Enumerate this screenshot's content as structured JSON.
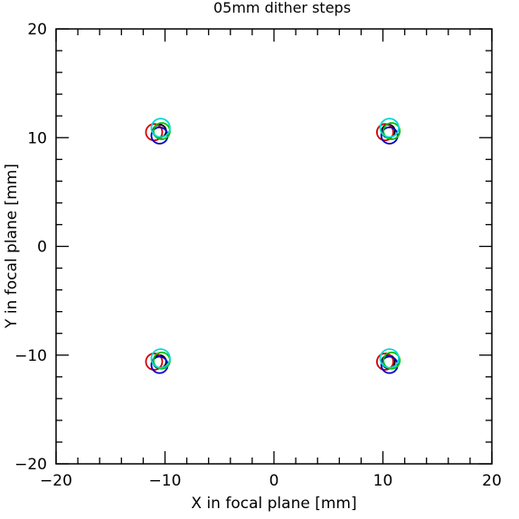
{
  "chart_data": {
    "type": "scatter",
    "title": "05mm dither steps",
    "xlabel": "X in focal plane [mm]",
    "ylabel": "Y in focal plane [mm]",
    "xlim": [
      -20,
      20
    ],
    "ylim": [
      -20,
      20
    ],
    "x_ticks": [
      "−20",
      "−10",
      "0",
      "10",
      "20"
    ],
    "y_ticks": [
      "−20",
      "−10",
      "0",
      "10",
      "20"
    ],
    "grid": false,
    "series": [
      {
        "color": "#000000",
        "circle_radius": 0.6,
        "points": [
          {
            "x": -10.5,
            "y": 10.6
          },
          {
            "x": 10.5,
            "y": 10.6
          },
          {
            "x": -10.5,
            "y": -10.6
          },
          {
            "x": 10.5,
            "y": -10.6
          }
        ]
      },
      {
        "color": "#d40000",
        "circle_radius": 0.75,
        "points": [
          {
            "x": -11.0,
            "y": 10.5
          },
          {
            "x": 10.2,
            "y": 10.5
          },
          {
            "x": -11.0,
            "y": -10.6
          },
          {
            "x": 10.2,
            "y": -10.6
          }
        ]
      },
      {
        "color": "#0000cc",
        "circle_radius": 0.75,
        "points": [
          {
            "x": -10.5,
            "y": 10.2
          },
          {
            "x": 10.6,
            "y": 10.2
          },
          {
            "x": -10.5,
            "y": -10.9
          },
          {
            "x": 10.6,
            "y": -10.9
          }
        ]
      },
      {
        "color": "#00c000",
        "circle_radius": 0.75,
        "points": [
          {
            "x": -10.3,
            "y": 10.6
          },
          {
            "x": 10.8,
            "y": 10.6
          },
          {
            "x": -10.3,
            "y": -10.5
          },
          {
            "x": 10.8,
            "y": -10.5
          }
        ]
      },
      {
        "color": "#00d8d8",
        "circle_radius": 0.85,
        "points": [
          {
            "x": -10.4,
            "y": 10.9
          },
          {
            "x": 10.6,
            "y": 10.9
          },
          {
            "x": -10.4,
            "y": -10.3
          },
          {
            "x": 10.6,
            "y": -10.3
          }
        ]
      }
    ]
  }
}
